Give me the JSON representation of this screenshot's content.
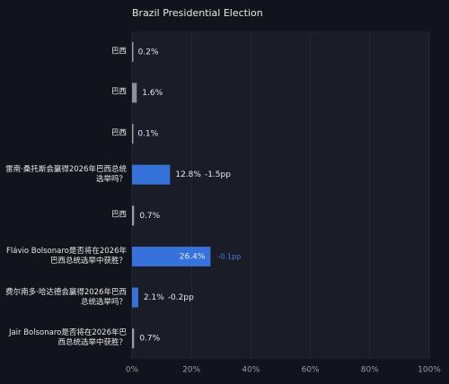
{
  "chart_data": {
    "type": "bar",
    "orientation": "horizontal",
    "title": "Brazil Presidential Election",
    "categories": [
      "巴西",
      "巴西",
      "巴西",
      "雷南·桑托斯会赢得2026年巴西总统选举吗？",
      "巴西",
      "Flávio Bolsonaro是否将在2026年巴西总统选举中获胜？",
      "费尔南多·哈达德会赢得2026年巴西总统选举吗？",
      "Jair Bolsonaro是否将在2026年巴西总统选举中获胜？"
    ],
    "values": [
      0.2,
      1.6,
      0.1,
      12.8,
      0.7,
      26.4,
      2.1,
      0.7
    ],
    "value_labels": [
      "0.2%",
      "1.6%",
      "0.1%",
      "12.8%",
      "0.7%",
      "26.4%",
      "2.1%",
      "0.7%"
    ],
    "changes": [
      null,
      null,
      null,
      -1.5,
      null,
      -0.1,
      -0.2,
      null
    ],
    "change_labels": [
      null,
      null,
      null,
      "-1.5pp",
      null,
      "-0.1pp",
      "-0.2pp",
      null
    ],
    "colors": [
      "#9a9ca4",
      "#8e9099",
      "#9a9ca4",
      "#3573db",
      "#9a9ca4",
      "#3573db",
      "#3573db",
      "#9a9ca4"
    ],
    "xlim": [
      0,
      100
    ],
    "xticks": [
      {
        "value": 0,
        "label": "0%"
      },
      {
        "value": 20,
        "label": "20%"
      },
      {
        "value": 40,
        "label": "40%"
      },
      {
        "value": 60,
        "label": "60%"
      },
      {
        "value": 80,
        "label": "80%"
      },
      {
        "value": 100,
        "label": "100%"
      }
    ],
    "grid": true
  }
}
